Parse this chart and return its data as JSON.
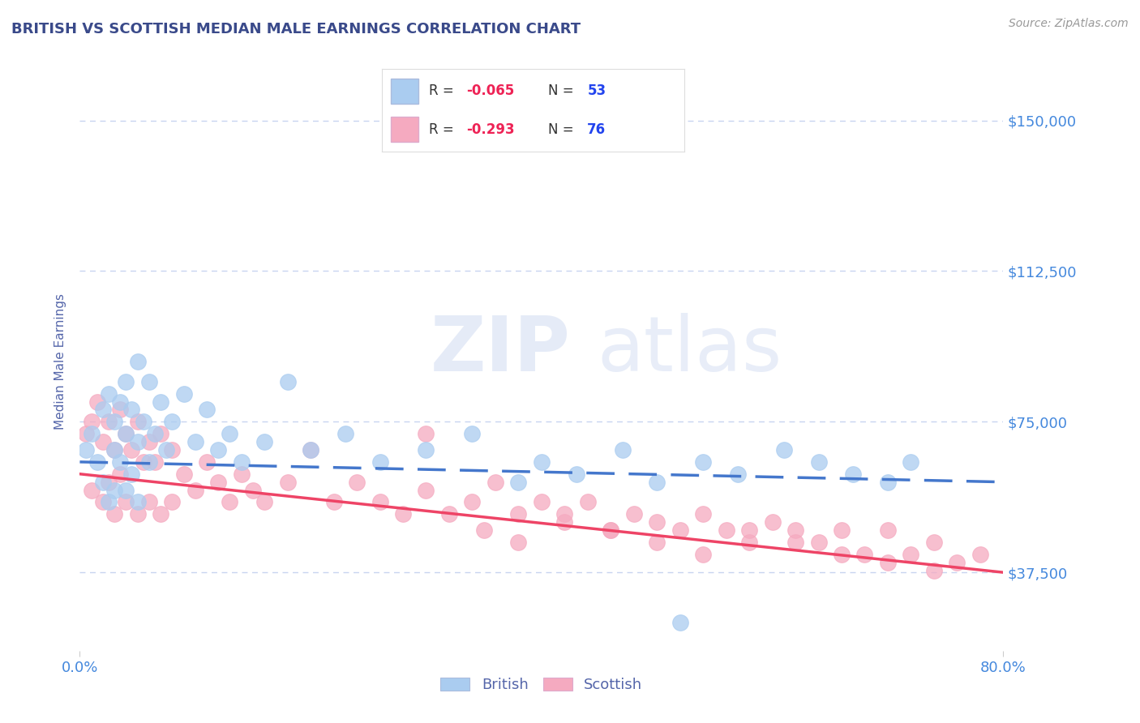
{
  "title": "BRITISH VS SCOTTISH MEDIAN MALE EARNINGS CORRELATION CHART",
  "source": "Source: ZipAtlas.com",
  "ylabel": "Median Male Earnings",
  "xlim": [
    0.0,
    0.8
  ],
  "ylim": [
    18000,
    162000
  ],
  "yticks": [
    37500,
    75000,
    112500,
    150000
  ],
  "ytick_labels": [
    "$37,500",
    "$75,000",
    "$112,500",
    "$150,000"
  ],
  "xticks": [
    0.0,
    0.8
  ],
  "xtick_labels": [
    "0.0%",
    "80.0%"
  ],
  "background_color": "#ffffff",
  "grid_color": "#c8d4f0",
  "title_color": "#3a4a8a",
  "axis_label_color": "#5566aa",
  "tick_label_color": "#4488dd",
  "source_color": "#999999",
  "british_color": "#aaccf0",
  "scottish_color": "#f5aac0",
  "british_line_color": "#4477cc",
  "scottish_line_color": "#ee4466",
  "legend_R_color": "#ee2255",
  "legend_N_color": "#2244ee",
  "british_R": -0.065,
  "british_N": 53,
  "scottish_R": -0.293,
  "scottish_N": 76,
  "british_line_x0": 0.0,
  "british_line_y0": 65000,
  "british_line_x1": 0.8,
  "british_line_y1": 60000,
  "scottish_line_x0": 0.0,
  "scottish_line_y0": 62000,
  "scottish_line_x1": 0.8,
  "scottish_line_y1": 37500,
  "british_scatter_x": [
    0.005,
    0.01,
    0.015,
    0.02,
    0.02,
    0.025,
    0.025,
    0.03,
    0.03,
    0.03,
    0.035,
    0.035,
    0.04,
    0.04,
    0.04,
    0.045,
    0.045,
    0.05,
    0.05,
    0.05,
    0.055,
    0.06,
    0.06,
    0.065,
    0.07,
    0.075,
    0.08,
    0.09,
    0.1,
    0.11,
    0.12,
    0.13,
    0.14,
    0.16,
    0.18,
    0.2,
    0.23,
    0.26,
    0.3,
    0.34,
    0.38,
    0.4,
    0.43,
    0.47,
    0.5,
    0.54,
    0.57,
    0.61,
    0.64,
    0.67,
    0.7,
    0.72,
    0.52
  ],
  "british_scatter_y": [
    68000,
    72000,
    65000,
    78000,
    60000,
    82000,
    55000,
    75000,
    68000,
    58000,
    80000,
    65000,
    85000,
    72000,
    58000,
    78000,
    62000,
    90000,
    70000,
    55000,
    75000,
    85000,
    65000,
    72000,
    80000,
    68000,
    75000,
    82000,
    70000,
    78000,
    68000,
    72000,
    65000,
    70000,
    85000,
    68000,
    72000,
    65000,
    68000,
    72000,
    60000,
    65000,
    62000,
    68000,
    60000,
    65000,
    62000,
    68000,
    65000,
    62000,
    60000,
    65000,
    25000
  ],
  "scottish_scatter_x": [
    0.005,
    0.01,
    0.01,
    0.015,
    0.02,
    0.02,
    0.025,
    0.025,
    0.03,
    0.03,
    0.035,
    0.035,
    0.04,
    0.04,
    0.045,
    0.05,
    0.05,
    0.055,
    0.06,
    0.06,
    0.065,
    0.07,
    0.07,
    0.08,
    0.08,
    0.09,
    0.1,
    0.11,
    0.12,
    0.13,
    0.14,
    0.15,
    0.16,
    0.18,
    0.2,
    0.22,
    0.24,
    0.26,
    0.28,
    0.3,
    0.32,
    0.34,
    0.36,
    0.38,
    0.4,
    0.42,
    0.44,
    0.46,
    0.48,
    0.5,
    0.52,
    0.54,
    0.56,
    0.58,
    0.6,
    0.62,
    0.64,
    0.66,
    0.68,
    0.7,
    0.72,
    0.74,
    0.76,
    0.78,
    0.3,
    0.35,
    0.38,
    0.42,
    0.46,
    0.5,
    0.54,
    0.58,
    0.62,
    0.66,
    0.7,
    0.74
  ],
  "scottish_scatter_y": [
    72000,
    75000,
    58000,
    80000,
    70000,
    55000,
    75000,
    60000,
    68000,
    52000,
    78000,
    62000,
    72000,
    55000,
    68000,
    75000,
    52000,
    65000,
    70000,
    55000,
    65000,
    72000,
    52000,
    68000,
    55000,
    62000,
    58000,
    65000,
    60000,
    55000,
    62000,
    58000,
    55000,
    60000,
    68000,
    55000,
    60000,
    55000,
    52000,
    58000,
    52000,
    55000,
    60000,
    52000,
    55000,
    50000,
    55000,
    48000,
    52000,
    50000,
    48000,
    52000,
    48000,
    45000,
    50000,
    48000,
    45000,
    48000,
    42000,
    48000,
    42000,
    45000,
    40000,
    42000,
    72000,
    48000,
    45000,
    52000,
    48000,
    45000,
    42000,
    48000,
    45000,
    42000,
    40000,
    38000
  ]
}
